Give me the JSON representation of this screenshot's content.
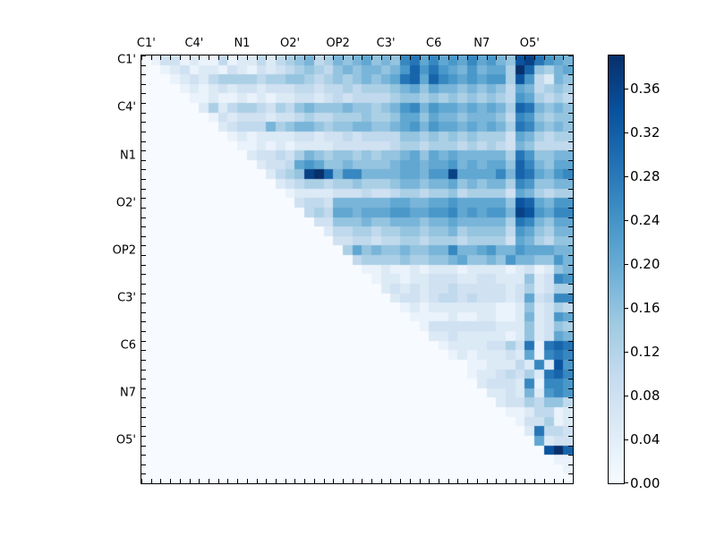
{
  "figure": {
    "background": "#ffffff"
  },
  "chart_data": {
    "type": "heatmap",
    "title": "",
    "xlabel": "",
    "ylabel": "",
    "n": 45,
    "group_size": 5,
    "x_tick_labels": [
      "C1'",
      "C4'",
      "N1",
      "O2'",
      "OP2",
      "C3'",
      "C6",
      "N7",
      "O5'"
    ],
    "y_tick_labels": [
      "C1'",
      "C4'",
      "N1",
      "O2'",
      "OP2",
      "C3'",
      "C6",
      "N7",
      "O5'"
    ],
    "vmin": 0.0,
    "vmax": 0.39,
    "value_scale": 0.026,
    "triangular": "upper",
    "grid": false,
    "legend_position": "colorbar-right",
    "colorbar_tick_labels": [
      "0.00",
      "0.04",
      "0.08",
      "0.12",
      "0.16",
      "0.20",
      "0.24",
      "0.28",
      "0.32",
      "0.36"
    ],
    "colormap": {
      "name": "Blues",
      "stops": [
        [
          0.0,
          "#f7fbff"
        ],
        [
          0.125,
          "#deebf7"
        ],
        [
          0.25,
          "#c6dbef"
        ],
        [
          0.375,
          "#9ecae1"
        ],
        [
          0.5,
          "#6baed6"
        ],
        [
          0.625,
          "#4292c6"
        ],
        [
          0.75,
          "#2171b5"
        ],
        [
          0.875,
          "#08519c"
        ],
        [
          1.0,
          "#08306b"
        ]
      ]
    },
    "matrix_hex_rows": [
      "013312114122424567457678676ab8a898a8976deb987",
      "0012312213213234565467677679c9b98797885fc6578",
      "000123245555455665456567678bc8ca9898995d94276",
      "000012123233233344344545556786877676764874565",
      "000001121121212233234344445665656565654985454",
      "0000002524554354676667665679a7988787875cb7676",
      "000000013233323345445556556886877677764a96566",
      "000000002344475677656677667897988787875ba7676",
      "000000000121222233233434444665656565553875455",
      "000000000011212122223333334554555454543764444",
      "000000000002334357656656566786878777775b96677",
      "000000000000233489866766667887889787886ca7688",
      "00000000000002456efc7aa777788799e8888a7cb879a",
      "000000000000002345545565556776778676775a96677",
      "000000000000000122223334334554556455553875455",
      "000000000000000034437777778877889888886dc8799",
      "00000000000000000454887888998899a898997ed98aa",
      "000000000000000000336667667776778777775ba7688",
      "000000000000000000024455455665667566664986577",
      "000000000000000000003344344554555455553875466",
      "00000000000000000000058676676677a778977988877",
      "000000000000000000000045555655667866769776697",
      "000000000000000000000001121121222122221231267",
      "0000000000000000000000001221223332233222623a9",
      "000000000000000000000000023232334333332352355",
      "000000000000000000000000002332344343332383 4aa",
      "000000000000000000000000000121222222211262354",
      "000000000000000000000000000011112112211272398",
      "000000000000000000000000000001333333322262365",
      "000000000000000000000000000000223222221262387",
      "00000000000000000000000000000001222233 53b1bcb",
      "000000000000000000000000000000001212223281aba",
      "00000000000000000000000000000000001122242a2d98",
      "000000000000000000000000000000000012234352bca",
      "00000000000000000000000000000000000 23332a1aa9",
      "0000000000000000000000000000000000002232729a9",
      "000000000000000000000000000000000000023354664",
      "000000000000000000000000000000000000001124412",
      "000000000000000000000000000000000000000133512",
      "0000000000000000000000000000000000000000 2b443",
      "000000000000000000000000000000000000000008233",
      "00000000000000000000000000000000000000000 0dfc",
      "000000000000000000000000000000000000000000011",
      "000000000000000000000000000000000000000000001",
      "000000000000000000000000000000000000000000000"
    ]
  }
}
